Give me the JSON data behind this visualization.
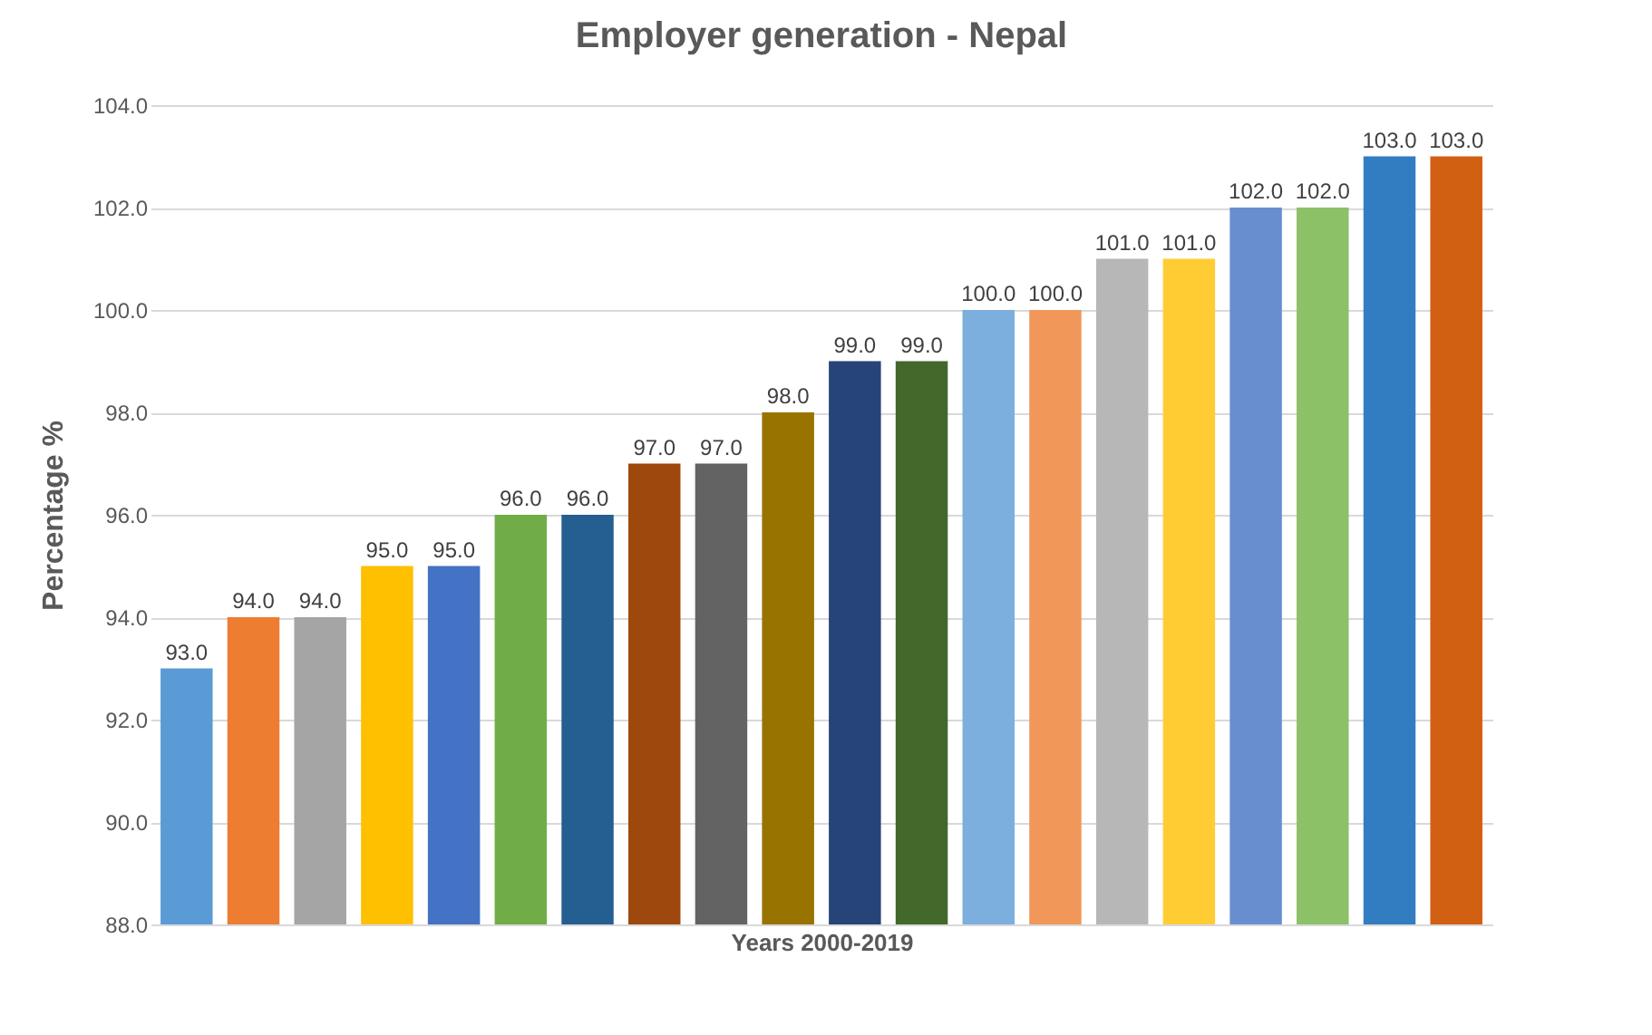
{
  "chart_data": {
    "type": "bar",
    "title": "Employer generation - Nepal",
    "xlabel": "Years 2000-2019",
    "ylabel": "Percentage %",
    "categories": [
      null,
      null,
      null,
      null,
      null,
      null,
      null,
      null,
      null,
      null,
      null,
      null,
      null,
      null,
      null,
      null,
      null,
      null,
      null,
      null
    ],
    "values": [
      93,
      94,
      94,
      95,
      95,
      96,
      96,
      97,
      97,
      98,
      99,
      99,
      100,
      100,
      101,
      101,
      102,
      102,
      103,
      103
    ],
    "value_labels": [
      "93.0",
      "94.0",
      "94.0",
      "95.0",
      "95.0",
      "96.0",
      "96.0",
      "97.0",
      "97.0",
      "98.0",
      "99.0",
      "99.0",
      "100.0",
      "100.0",
      "101.0",
      "101.0",
      "102.0",
      "102.0",
      "103.0",
      "103.0"
    ],
    "colors": [
      "#5b9bd5",
      "#ed7d31",
      "#a5a5a5",
      "#ffc000",
      "#4472c4",
      "#70ad47",
      "#255e91",
      "#9e480e",
      "#636363",
      "#997300",
      "#264478",
      "#43682b",
      "#7cafdd",
      "#f1975a",
      "#b7b7b7",
      "#ffcd33",
      "#698ed0",
      "#8cc168",
      "#327dc2",
      "#d26012"
    ],
    "ylim": [
      88,
      104
    ],
    "yticks": [
      {
        "value": 88,
        "label": "88.0"
      },
      {
        "value": 90,
        "label": "90.0"
      },
      {
        "value": 92,
        "label": "92.0"
      },
      {
        "value": 94,
        "label": "94.0"
      },
      {
        "value": 96,
        "label": "96.0"
      },
      {
        "value": 98,
        "label": "98.0"
      },
      {
        "value": 100,
        "label": "100.0"
      },
      {
        "value": 102,
        "label": "102.0"
      },
      {
        "value": 104,
        "label": "104.0"
      }
    ],
    "grid": "y",
    "tick_labels": "y"
  }
}
